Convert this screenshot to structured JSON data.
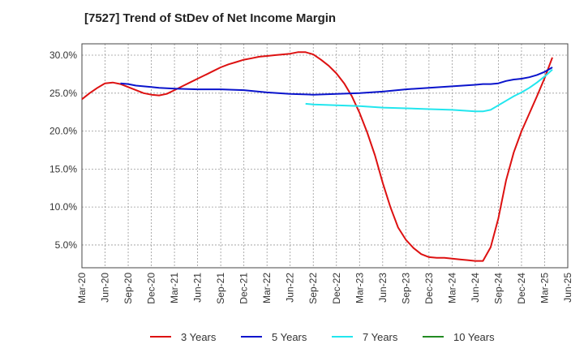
{
  "chart_data": {
    "type": "line",
    "title": "[7527]  Trend of StDev of Net Income Margin",
    "xlabel": "",
    "ylabel": "",
    "ylim": [
      2.0,
      31.5
    ],
    "xlim": [
      "2020-03",
      "2025-06"
    ],
    "grid": true,
    "legend_position": "bottom",
    "y_ticks": [
      {
        "value": 5.0,
        "label": "5.0%"
      },
      {
        "value": 10.0,
        "label": "10.0%"
      },
      {
        "value": 15.0,
        "label": "15.0%"
      },
      {
        "value": 20.0,
        "label": "20.0%"
      },
      {
        "value": 25.0,
        "label": "25.0%"
      },
      {
        "value": 30.0,
        "label": "30.0%"
      }
    ],
    "x_ticks": [
      "Mar-20",
      "Jun-20",
      "Sep-20",
      "Dec-20",
      "Mar-21",
      "Jun-21",
      "Sep-21",
      "Dec-21",
      "Mar-22",
      "Jun-22",
      "Sep-22",
      "Dec-22",
      "Mar-23",
      "Jun-23",
      "Sep-23",
      "Dec-23",
      "Mar-24",
      "Jun-24",
      "Sep-24",
      "Dec-24",
      "Mar-25",
      "Jun-25"
    ],
    "series": [
      {
        "name": "3 Years",
        "color": "#dd1111",
        "points": [
          [
            "2020-03",
            24.2
          ],
          [
            "2020-04",
            25.0
          ],
          [
            "2020-05",
            25.7
          ],
          [
            "2020-06",
            26.3
          ],
          [
            "2020-07",
            26.4
          ],
          [
            "2020-08",
            26.2
          ],
          [
            "2020-09",
            25.8
          ],
          [
            "2020-10",
            25.4
          ],
          [
            "2020-11",
            25.0
          ],
          [
            "2020-12",
            24.8
          ],
          [
            "2021-01",
            24.7
          ],
          [
            "2021-02",
            24.9
          ],
          [
            "2021-03",
            25.4
          ],
          [
            "2021-04",
            25.9
          ],
          [
            "2021-05",
            26.4
          ],
          [
            "2021-06",
            26.9
          ],
          [
            "2021-07",
            27.4
          ],
          [
            "2021-08",
            27.9
          ],
          [
            "2021-09",
            28.4
          ],
          [
            "2021-10",
            28.8
          ],
          [
            "2021-11",
            29.1
          ],
          [
            "2021-12",
            29.4
          ],
          [
            "2022-01",
            29.6
          ],
          [
            "2022-02",
            29.8
          ],
          [
            "2022-03",
            29.9
          ],
          [
            "2022-04",
            30.0
          ],
          [
            "2022-05",
            30.1
          ],
          [
            "2022-06",
            30.2
          ],
          [
            "2022-07",
            30.4
          ],
          [
            "2022-08",
            30.4
          ],
          [
            "2022-09",
            30.1
          ],
          [
            "2022-10",
            29.4
          ],
          [
            "2022-11",
            28.6
          ],
          [
            "2022-12",
            27.6
          ],
          [
            "2023-01",
            26.3
          ],
          [
            "2023-02",
            24.6
          ],
          [
            "2023-03",
            22.4
          ],
          [
            "2023-04",
            19.8
          ],
          [
            "2023-05",
            16.8
          ],
          [
            "2023-06",
            13.2
          ],
          [
            "2023-07",
            10.0
          ],
          [
            "2023-08",
            7.3
          ],
          [
            "2023-09",
            5.7
          ],
          [
            "2023-10",
            4.6
          ],
          [
            "2023-11",
            3.8
          ],
          [
            "2023-12",
            3.4
          ],
          [
            "2024-01",
            3.3
          ],
          [
            "2024-02",
            3.3
          ],
          [
            "2024-03",
            3.2
          ],
          [
            "2024-04",
            3.1
          ],
          [
            "2024-05",
            3.0
          ],
          [
            "2024-06",
            2.9
          ],
          [
            "2024-07",
            2.9
          ],
          [
            "2024-08",
            4.7
          ],
          [
            "2024-09",
            8.5
          ],
          [
            "2024-10",
            13.5
          ],
          [
            "2024-11",
            17.2
          ],
          [
            "2024-12",
            20.0
          ],
          [
            "2025-01",
            22.3
          ],
          [
            "2025-02",
            24.6
          ],
          [
            "2025-03",
            27.0
          ],
          [
            "2025-04",
            29.7
          ]
        ]
      },
      {
        "name": "5 Years",
        "color": "#0a14cc",
        "points": [
          [
            "2020-08",
            26.3
          ],
          [
            "2020-09",
            26.2
          ],
          [
            "2020-10",
            26.0
          ],
          [
            "2020-11",
            25.9
          ],
          [
            "2020-12",
            25.8
          ],
          [
            "2021-01",
            25.7
          ],
          [
            "2021-03",
            25.6
          ],
          [
            "2021-06",
            25.5
          ],
          [
            "2021-09",
            25.5
          ],
          [
            "2021-12",
            25.4
          ],
          [
            "2022-03",
            25.1
          ],
          [
            "2022-06",
            24.9
          ],
          [
            "2022-09",
            24.8
          ],
          [
            "2022-12",
            24.9
          ],
          [
            "2023-03",
            25.0
          ],
          [
            "2023-06",
            25.2
          ],
          [
            "2023-09",
            25.5
          ],
          [
            "2023-12",
            25.7
          ],
          [
            "2024-03",
            25.9
          ],
          [
            "2024-06",
            26.1
          ],
          [
            "2024-07",
            26.2
          ],
          [
            "2024-08",
            26.2
          ],
          [
            "2024-09",
            26.3
          ],
          [
            "2024-10",
            26.6
          ],
          [
            "2024-11",
            26.8
          ],
          [
            "2024-12",
            26.9
          ],
          [
            "2025-01",
            27.1
          ],
          [
            "2025-02",
            27.4
          ],
          [
            "2025-03",
            27.8
          ],
          [
            "2025-04",
            28.4
          ]
        ]
      },
      {
        "name": "7 Years",
        "color": "#22e6ee",
        "points": [
          [
            "2022-08",
            23.6
          ],
          [
            "2022-09",
            23.5
          ],
          [
            "2022-12",
            23.4
          ],
          [
            "2023-03",
            23.3
          ],
          [
            "2023-06",
            23.1
          ],
          [
            "2023-09",
            23.0
          ],
          [
            "2023-12",
            22.9
          ],
          [
            "2024-03",
            22.8
          ],
          [
            "2024-06",
            22.6
          ],
          [
            "2024-07",
            22.6
          ],
          [
            "2024-08",
            22.8
          ],
          [
            "2024-09",
            23.4
          ],
          [
            "2024-10",
            24.0
          ],
          [
            "2024-11",
            24.6
          ],
          [
            "2024-12",
            25.1
          ],
          [
            "2025-01",
            25.7
          ],
          [
            "2025-02",
            26.4
          ],
          [
            "2025-03",
            27.2
          ],
          [
            "2025-04",
            28.1
          ]
        ]
      },
      {
        "name": "10 Years",
        "color": "#228b22",
        "points": []
      }
    ]
  }
}
